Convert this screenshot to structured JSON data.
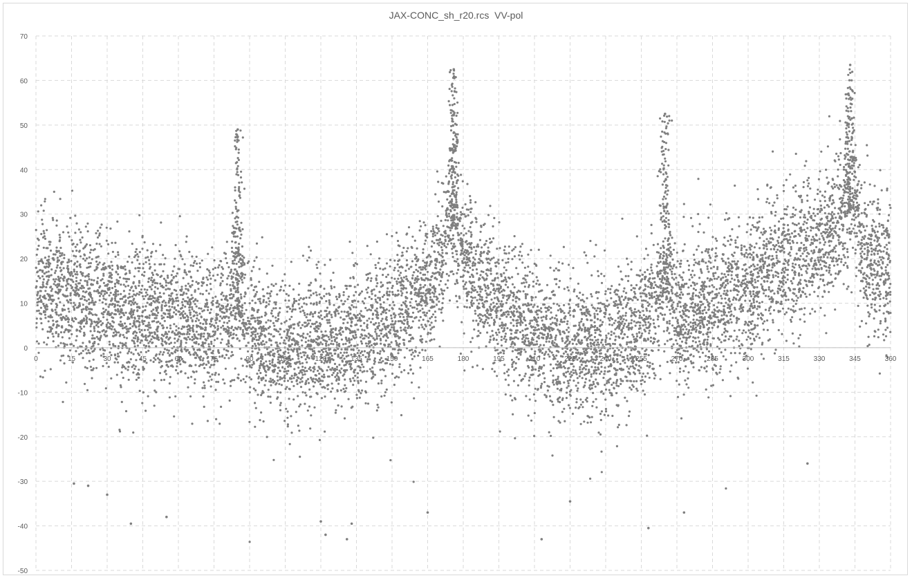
{
  "chart_data": {
    "type": "scatter",
    "title": "JAX-CONC_sh_r20.rcs  VV-pol",
    "xlabel": "",
    "ylabel": "",
    "xlim": [
      0,
      360
    ],
    "ylim": [
      -50,
      70
    ],
    "x_ticks": [
      0,
      15,
      30,
      45,
      60,
      75,
      90,
      105,
      120,
      135,
      150,
      165,
      180,
      195,
      210,
      225,
      240,
      255,
      270,
      285,
      300,
      315,
      330,
      345,
      360
    ],
    "x_tick_labels": [
      "0",
      "15",
      "30",
      "45",
      "60",
      "75",
      "90",
      "105",
      "120",
      "135",
      "150",
      "165",
      "180",
      "195",
      "210",
      "225",
      "240",
      "255",
      "270",
      "285",
      "300",
      "315",
      "330",
      "345",
      "360"
    ],
    "y_ticks": [
      -50,
      -40,
      -30,
      -20,
      -10,
      0,
      10,
      20,
      30,
      40,
      50,
      60,
      70
    ],
    "y_tick_labels": [
      "-50",
      "-40",
      "-30",
      "-20",
      "-10",
      "0",
      "10",
      "20",
      "30",
      "40",
      "50",
      "60",
      "70"
    ],
    "grid": true,
    "grid_style": "dashed",
    "legend": "none",
    "marker_color": "#7f7f7f",
    "series": [
      {
        "name": "",
        "trend": {
          "x": [
            0,
            15,
            30,
            45,
            60,
            75,
            85,
            90,
            105,
            120,
            135,
            150,
            165,
            176,
            180,
            195,
            210,
            225,
            240,
            255,
            265,
            270,
            285,
            300,
            315,
            330,
            345,
            350,
            360
          ],
          "y": [
            15,
            12,
            9,
            7,
            6,
            4,
            8,
            2,
            0,
            1,
            3,
            6,
            13,
            28,
            20,
            9,
            3,
            0,
            1,
            4,
            12,
            6,
            10,
            14,
            19,
            23,
            32,
            20,
            17
          ]
        },
        "peaks": [
          {
            "x": 85,
            "y": 49
          },
          {
            "x": 176,
            "y": 62.5
          },
          {
            "x": 265,
            "y": 52.5
          },
          {
            "x": 343,
            "y": 63.5
          }
        ],
        "outliers": [
          {
            "x": 16,
            "y": -30.5
          },
          {
            "x": 22,
            "y": -31
          },
          {
            "x": 30,
            "y": -33
          },
          {
            "x": 40,
            "y": -39.5
          },
          {
            "x": 55,
            "y": -38
          },
          {
            "x": 120,
            "y": -39
          },
          {
            "x": 122,
            "y": -42
          },
          {
            "x": 131,
            "y": -43
          },
          {
            "x": 133,
            "y": -39.5
          },
          {
            "x": 165,
            "y": -37
          },
          {
            "x": 213,
            "y": -43
          },
          {
            "x": 225,
            "y": -34.5
          },
          {
            "x": 258,
            "y": -40.5
          },
          {
            "x": 273,
            "y": -37
          },
          {
            "x": 325,
            "y": -26
          }
        ]
      }
    ]
  }
}
